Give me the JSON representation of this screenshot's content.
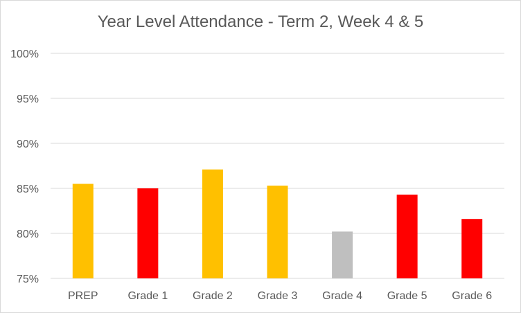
{
  "chart_data": {
    "type": "bar",
    "title": "Year Level Attendance - Term 2, Week 4 & 5",
    "categories": [
      "PREP",
      "Grade 1",
      "Grade 2",
      "Grade 3",
      "Grade 4",
      "Grade 5",
      "Grade 6"
    ],
    "values": [
      85.5,
      85.0,
      87.1,
      85.3,
      80.2,
      84.3,
      81.6
    ],
    "bar_colors": [
      "#FFC000",
      "#FF0000",
      "#FFC000",
      "#FFC000",
      "#BFBFBF",
      "#FF0000",
      "#FF0000"
    ],
    "ylim": [
      75,
      100
    ],
    "yticks": [
      "75%",
      "80%",
      "85%",
      "90%",
      "95%",
      "100%"
    ],
    "grid": true,
    "legend": "none"
  },
  "colors": {
    "grid": "#d9d9d9",
    "text": "#595959"
  }
}
